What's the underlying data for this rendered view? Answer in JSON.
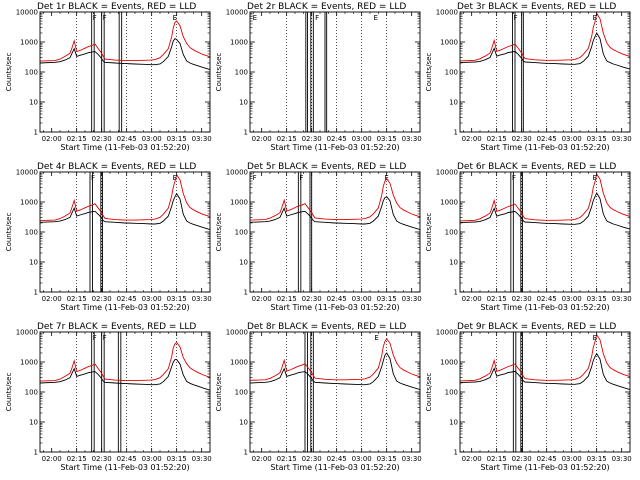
{
  "colors": {
    "events": "#000000",
    "lld": "#e00000",
    "axis": "#000000",
    "background": "#ffffff"
  },
  "chart_data": {
    "type": "line",
    "layout": "3x3 grid",
    "panel_title_suffix": " BLACK = Events, RED = LLD",
    "xlabel": "Start Time (11-Feb-03 01:52:20)",
    "ylabel": "Counts/sec",
    "y_scale": "log",
    "ylim": [
      1,
      10000
    ],
    "y_ticks": [
      1,
      10,
      100,
      1000,
      10000
    ],
    "y_tick_labels": [
      "1",
      "10",
      "100",
      "1000",
      "10000"
    ],
    "x_range_minutes": [
      -7.0,
      95.0
    ],
    "x_ticks_minutes": [
      0,
      15,
      30,
      45,
      60,
      75,
      90
    ],
    "x_tick_labels": [
      "02:00",
      "02:15",
      "02:30",
      "02:45",
      "03:00",
      "03:15",
      "03:30"
    ],
    "dotted_guide_minutes": [
      15,
      30,
      45,
      60,
      75
    ],
    "series_names": [
      "Events",
      "LLD"
    ],
    "lld_curve": {
      "x": [
        -7,
        2,
        5,
        8,
        11,
        12,
        13.5,
        15,
        17,
        20,
        22,
        24,
        26,
        28,
        30,
        31,
        32,
        38,
        44,
        45,
        50,
        55,
        60,
        62,
        65,
        67,
        70,
        72,
        73,
        74,
        75,
        77,
        79,
        81,
        83,
        85,
        88,
        91,
        95
      ],
      "y": [
        230,
        240,
        270,
        330,
        420,
        600,
        1100,
        480,
        520,
        620,
        700,
        760,
        850,
        600,
        420,
        330,
        270,
        250,
        240,
        240,
        240,
        245,
        250,
        260,
        300,
        380,
        600,
        1500,
        3000,
        4500,
        5000,
        3500,
        1500,
        900,
        650,
        550,
        450,
        380,
        320
      ]
    },
    "events_curve": {
      "x": [
        -7,
        2,
        5,
        8,
        11,
        12,
        13.5,
        15,
        17,
        20,
        22,
        24,
        26,
        28,
        30,
        31,
        32,
        38,
        44,
        45,
        50,
        55,
        60,
        62,
        65,
        67,
        70,
        72,
        73,
        74,
        75,
        77,
        79,
        81,
        83,
        85,
        88,
        91,
        95
      ],
      "y": [
        200,
        210,
        220,
        250,
        300,
        400,
        600,
        330,
        360,
        400,
        440,
        460,
        480,
        380,
        280,
        230,
        210,
        200,
        190,
        190,
        185,
        180,
        175,
        175,
        185,
        220,
        330,
        700,
        1100,
        1300,
        1200,
        900,
        380,
        230,
        200,
        180,
        160,
        140,
        120
      ]
    },
    "panels": [
      {
        "title": "Det 1r",
        "gaps": [
          {
            "start": 24.0,
            "end": 25.5
          },
          {
            "start": 30.0,
            "end": 31.5
          },
          {
            "start": 40.5,
            "end": 42.0
          }
        ],
        "flags": [
          {
            "t": 24.0,
            "marker": "F"
          },
          {
            "t": 30.0,
            "marker": "F"
          },
          {
            "t": 72.0,
            "marker": "E"
          }
        ],
        "lld": [
          230,
          240,
          270,
          330,
          420,
          600,
          1100,
          480,
          520,
          620,
          700,
          760,
          850,
          600,
          420,
          330,
          270,
          250,
          240,
          240,
          240,
          245,
          250,
          260,
          300,
          380,
          600,
          1500,
          3000,
          4500,
          5000,
          3500,
          1500,
          900,
          650,
          550,
          450,
          380,
          320
        ],
        "events": [
          200,
          210,
          220,
          250,
          300,
          400,
          600,
          330,
          360,
          400,
          440,
          460,
          480,
          380,
          280,
          230,
          210,
          200,
          190,
          190,
          185,
          180,
          175,
          175,
          185,
          220,
          330,
          700,
          1100,
          1300,
          1200,
          900,
          380,
          230,
          200,
          180,
          160,
          140,
          120
        ]
      },
      {
        "title": "Det 2r",
        "gaps": [
          {
            "start": 26.5,
            "end": 27.5
          },
          {
            "start": 29.5,
            "end": 31.0
          },
          {
            "start": 38.0,
            "end": 39.0
          }
        ],
        "flags": [
          {
            "t": -6.0,
            "marker": "E"
          },
          {
            "t": 31.5,
            "marker": "F"
          },
          {
            "t": 66.5,
            "marker": "E"
          }
        ],
        "lld": [],
        "events": []
      },
      {
        "title": "Det 3r",
        "gaps": [
          {
            "start": 24.5,
            "end": 26.0
          },
          {
            "start": 30.0,
            "end": 31.0
          }
        ],
        "flags": [
          {
            "t": 24.5,
            "marker": "F"
          },
          {
            "t": 72.0,
            "marker": "E"
          }
        ],
        "lld": [
          235,
          245,
          275,
          335,
          425,
          610,
          1120,
          490,
          530,
          630,
          710,
          770,
          860,
          610,
          430,
          340,
          280,
          255,
          245,
          245,
          245,
          250,
          255,
          265,
          305,
          385,
          610,
          1550,
          3100,
          4700,
          9000,
          6000,
          2000,
          950,
          660,
          560,
          460,
          390,
          330
        ],
        "events": [
          205,
          215,
          225,
          255,
          305,
          405,
          610,
          335,
          365,
          405,
          445,
          465,
          485,
          385,
          285,
          235,
          215,
          205,
          195,
          195,
          190,
          185,
          180,
          180,
          190,
          225,
          335,
          710,
          1120,
          1500,
          2000,
          1300,
          400,
          235,
          205,
          185,
          165,
          145,
          125
        ]
      },
      {
        "title": "Det 4r",
        "gaps": [
          {
            "start": 23.0,
            "end": 24.5
          },
          {
            "start": 29.5,
            "end": 30.5
          }
        ],
        "flags": [
          {
            "t": 23.0,
            "marker": "F"
          },
          {
            "t": 72.0,
            "marker": "E"
          }
        ],
        "lld": [
          240,
          250,
          280,
          340,
          430,
          620,
          1130,
          495,
          535,
          640,
          720,
          780,
          870,
          620,
          435,
          345,
          285,
          260,
          250,
          250,
          250,
          255,
          260,
          270,
          310,
          390,
          620,
          1600,
          3200,
          4900,
          8000,
          5500,
          1900,
          930,
          655,
          555,
          455,
          385,
          325
        ],
        "events": [
          210,
          220,
          230,
          260,
          310,
          410,
          620,
          340,
          370,
          410,
          450,
          470,
          490,
          390,
          290,
          240,
          220,
          210,
          200,
          200,
          195,
          190,
          185,
          185,
          195,
          230,
          340,
          720,
          1130,
          1500,
          1900,
          1250,
          390,
          230,
          200,
          180,
          160,
          140,
          120
        ]
      },
      {
        "title": "Det 5r",
        "gaps": [
          {
            "start": 22.0,
            "end": 23.5
          },
          {
            "start": 29.0,
            "end": 30.0
          }
        ],
        "flags": [
          {
            "t": -6.0,
            "marker": "F"
          },
          {
            "t": 22.0,
            "marker": "F"
          },
          {
            "t": 73.0,
            "marker": "E"
          }
        ],
        "lld": [
          250,
          260,
          290,
          350,
          440,
          630,
          1150,
          505,
          545,
          650,
          730,
          790,
          880,
          630,
          445,
          355,
          295,
          270,
          260,
          260,
          260,
          265,
          270,
          280,
          320,
          400,
          630,
          1650,
          3300,
          5000,
          6000,
          4200,
          1700,
          920,
          650,
          550,
          450,
          380,
          320
        ],
        "events": [
          210,
          220,
          230,
          260,
          310,
          410,
          620,
          340,
          370,
          410,
          450,
          470,
          490,
          390,
          290,
          240,
          220,
          210,
          200,
          200,
          195,
          190,
          185,
          185,
          195,
          230,
          340,
          720,
          1100,
          1400,
          1500,
          1100,
          380,
          230,
          200,
          180,
          160,
          140,
          120
        ]
      },
      {
        "title": "Det 6r",
        "gaps": [
          {
            "start": 23.5,
            "end": 25.0
          },
          {
            "start": 29.5,
            "end": 30.5
          }
        ],
        "flags": [
          {
            "t": 23.5,
            "marker": "F"
          },
          {
            "t": 72.0,
            "marker": "E"
          }
        ],
        "lld": [
          235,
          245,
          275,
          335,
          425,
          610,
          1120,
          490,
          530,
          630,
          710,
          770,
          860,
          610,
          430,
          340,
          280,
          255,
          245,
          245,
          245,
          250,
          255,
          265,
          305,
          385,
          610,
          1550,
          3100,
          4700,
          8500,
          5800,
          2000,
          950,
          660,
          560,
          460,
          390,
          330
        ],
        "events": [
          205,
          215,
          225,
          255,
          305,
          405,
          610,
          335,
          365,
          405,
          445,
          465,
          485,
          385,
          285,
          235,
          215,
          205,
          195,
          195,
          190,
          185,
          180,
          180,
          190,
          225,
          335,
          710,
          1120,
          1500,
          2000,
          1300,
          400,
          235,
          205,
          185,
          165,
          145,
          125
        ]
      },
      {
        "title": "Det 7r",
        "gaps": [
          {
            "start": 24.0,
            "end": 25.5
          },
          {
            "start": 30.0,
            "end": 31.5
          },
          {
            "start": 40.0,
            "end": 41.5
          }
        ],
        "flags": [
          {
            "t": 24.0,
            "marker": "F"
          },
          {
            "t": 30.0,
            "marker": "F"
          }
        ],
        "lld": [
          230,
          240,
          270,
          330,
          420,
          600,
          1100,
          480,
          520,
          620,
          700,
          760,
          850,
          600,
          420,
          330,
          270,
          250,
          240,
          240,
          240,
          245,
          250,
          260,
          300,
          380,
          600,
          1500,
          3000,
          4000,
          4500,
          3200,
          1400,
          880,
          640,
          540,
          440,
          370,
          310
        ],
        "events": [
          200,
          210,
          220,
          250,
          300,
          400,
          600,
          330,
          360,
          400,
          440,
          460,
          480,
          380,
          280,
          230,
          210,
          200,
          190,
          190,
          185,
          180,
          175,
          175,
          185,
          220,
          330,
          700,
          1000,
          1200,
          1200,
          850,
          370,
          225,
          195,
          175,
          155,
          135,
          115
        ]
      },
      {
        "title": "Det 8r",
        "gaps": [
          {
            "start": 26.0,
            "end": 27.5
          },
          {
            "start": 29.5,
            "end": 31.0
          }
        ],
        "flags": [
          {
            "t": 67.0,
            "marker": "E"
          }
        ],
        "lld": [
          245,
          255,
          285,
          345,
          435,
          625,
          1140,
          500,
          540,
          645,
          725,
          785,
          875,
          625,
          440,
          350,
          290,
          265,
          255,
          255,
          255,
          260,
          265,
          275,
          315,
          395,
          625,
          1620,
          3250,
          4900,
          6000,
          4200,
          1700,
          920,
          650,
          550,
          450,
          380,
          320
        ],
        "events": [
          200,
          210,
          220,
          250,
          300,
          400,
          600,
          330,
          360,
          400,
          440,
          460,
          480,
          380,
          280,
          230,
          210,
          200,
          190,
          190,
          185,
          180,
          175,
          175,
          185,
          220,
          330,
          700,
          1100,
          1700,
          2000,
          1300,
          400,
          230,
          200,
          180,
          160,
          140,
          120
        ]
      },
      {
        "title": "Det 9r",
        "gaps": [
          {
            "start": 25.0,
            "end": 26.5
          },
          {
            "start": 29.5,
            "end": 30.5
          }
        ],
        "flags": [
          {
            "t": 72.0,
            "marker": "E"
          }
        ],
        "lld": [
          235,
          245,
          275,
          335,
          425,
          610,
          1120,
          490,
          530,
          630,
          710,
          770,
          860,
          610,
          430,
          340,
          280,
          255,
          245,
          245,
          245,
          250,
          255,
          265,
          305,
          385,
          610,
          1550,
          3100,
          4700,
          8000,
          5500,
          1900,
          930,
          655,
          555,
          455,
          385,
          325
        ],
        "events": [
          205,
          215,
          225,
          255,
          305,
          405,
          610,
          335,
          365,
          405,
          445,
          465,
          485,
          385,
          285,
          235,
          215,
          205,
          195,
          195,
          190,
          185,
          180,
          180,
          190,
          225,
          335,
          710,
          1120,
          1500,
          1900,
          1250,
          390,
          230,
          200,
          180,
          160,
          140,
          120
        ]
      }
    ]
  }
}
